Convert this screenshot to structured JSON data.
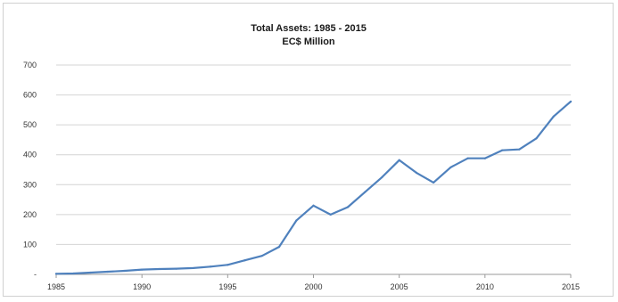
{
  "chart_data": {
    "type": "line",
    "title": "Total Assets: 1985 - 2015",
    "subtitle": "EC$ Million",
    "xlabel": "",
    "ylabel": "",
    "xlim": [
      1985,
      2015
    ],
    "ylim": [
      0,
      700
    ],
    "x_ticks": [
      1985,
      1990,
      1995,
      2000,
      2005,
      2010,
      2015
    ],
    "y_ticks": [
      0,
      100,
      200,
      300,
      400,
      500,
      600,
      700
    ],
    "y_tick_labels": [
      "-",
      "100",
      "200",
      "300",
      "400",
      "500",
      "600",
      "700"
    ],
    "grid": true,
    "legend": "none",
    "line_color": "#4f81bd",
    "series": [
      {
        "x": [
          1985,
          1986,
          1987,
          1988,
          1989,
          1990,
          1991,
          1992,
          1993,
          1994,
          1995,
          1996,
          1997,
          1998,
          1999,
          2000,
          2001,
          2002,
          2003,
          2004,
          2005,
          2006,
          2007,
          2008,
          2009,
          2010,
          2011,
          2012,
          2013,
          2014,
          2015
        ],
        "values": [
          2,
          3,
          6,
          9,
          12,
          16,
          18,
          19,
          21,
          26,
          32,
          47,
          62,
          92,
          180,
          230,
          200,
          225,
          275,
          325,
          382,
          340,
          307,
          358,
          388,
          388,
          415,
          418,
          455,
          528,
          578
        ]
      }
    ]
  }
}
